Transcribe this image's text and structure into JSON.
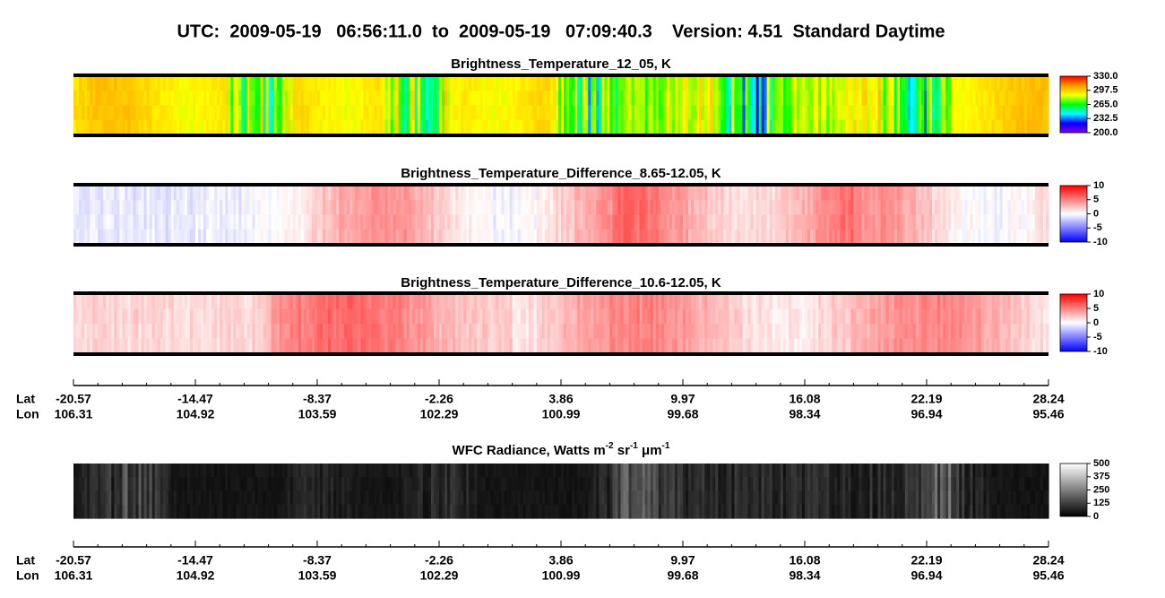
{
  "title": "UTC:  2009-05-19   06:56:11.0  to  2009-05-19   07:09:40.3    Version: 4.51  Standard Daytime",
  "chart_data": [
    {
      "type": "heatmap",
      "title": "Brightness_Temperature_12_05, K",
      "colorbar": {
        "lim": [
          200,
          330
        ],
        "ticks": [
          {
            "value": 330,
            "label": "330.0"
          },
          {
            "value": 297.5,
            "label": "297.5"
          },
          {
            "value": 265,
            "label": "265.0"
          },
          {
            "value": 232.5,
            "label": "232.5"
          },
          {
            "value": 200,
            "label": "200.0"
          }
        ],
        "colors": [
          "#8000ff",
          "#0000ff",
          "#00ffff",
          "#00ff00",
          "#ffff00",
          "#ff9900",
          "#ff0000"
        ]
      }
    },
    {
      "type": "heatmap",
      "title": "Brightness_Temperature_Difference_8.65-12.05, K",
      "colorbar": {
        "lim": [
          -10,
          10
        ],
        "ticks": [
          10,
          5,
          0,
          -5,
          -10
        ],
        "colors": [
          "#0000ff",
          "#ffffff",
          "#ff0000"
        ]
      }
    },
    {
      "type": "heatmap",
      "title": "Brightness_Temperature_Difference_10.6-12.05, K",
      "colorbar": {
        "lim": [
          -10,
          10
        ],
        "ticks": [
          10,
          5,
          0,
          -5,
          -10
        ],
        "colors": [
          "#0000ff",
          "#ffffff",
          "#ff0000"
        ]
      }
    },
    {
      "type": "heatmap",
      "title": [
        "WFC Radiance, Watts m",
        {
          "sup": "-2"
        },
        " sr",
        {
          "sup": "-1"
        },
        " μm",
        {
          "sup": "-1"
        }
      ],
      "colorbar": {
        "lim": [
          0,
          500
        ],
        "ticks": [
          500,
          375,
          250,
          125,
          0
        ],
        "colors": [
          "#000000",
          "#ffffff"
        ]
      }
    }
  ],
  "axes": [
    {
      "names": [
        "Lat",
        "Lon"
      ],
      "lat": [
        -20.57,
        -14.47,
        -8.37,
        -2.26,
        3.86,
        9.97,
        16.08,
        22.19,
        28.24
      ],
      "lon": [
        106.31,
        104.92,
        103.59,
        102.29,
        100.99,
        99.68,
        98.34,
        96.94,
        95.46
      ]
    },
    {
      "names": [
        "Lat",
        "Lon"
      ],
      "lat": [
        -20.57,
        -14.47,
        -8.37,
        -2.26,
        3.86,
        9.97,
        16.08,
        22.19,
        28.24
      ],
      "lon": [
        106.31,
        104.92,
        103.59,
        102.29,
        100.99,
        99.68,
        98.34,
        96.94,
        95.46
      ]
    }
  ]
}
